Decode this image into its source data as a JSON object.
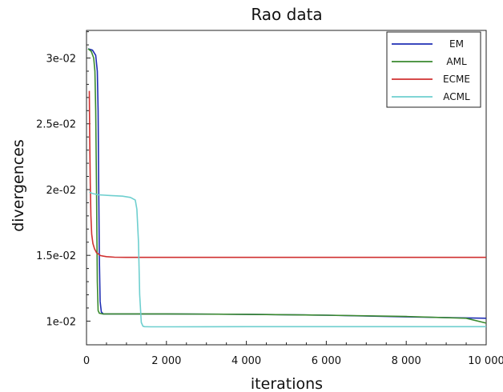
{
  "chart_data": {
    "type": "line",
    "title": "Rao data",
    "xlabel": "iterations",
    "ylabel": "divergences",
    "xlim": [
      0,
      10000
    ],
    "ylim": [
      0.0082,
      0.0321
    ],
    "grid": false,
    "legend_position": "top-right",
    "xticks": [
      0,
      2000,
      4000,
      6000,
      8000,
      10000
    ],
    "xtick_labels": [
      "0",
      "2 000",
      "4 000",
      "6 000",
      "8 000",
      "10 000"
    ],
    "yticks": [
      0.01,
      0.015,
      0.02,
      0.025,
      0.03
    ],
    "ytick_labels": [
      "1e-02",
      "1.5e-02",
      "2e-02",
      "2.5e-02",
      "3e-02"
    ],
    "series": [
      {
        "name": "EM",
        "color": "#1f2eb4",
        "x": [
          40,
          150,
          230,
          270,
          290,
          300,
          320,
          340,
          370,
          420,
          600,
          1000,
          2000,
          4000,
          6000,
          8000,
          10000
        ],
        "y": [
          0.0307,
          0.0306,
          0.0302,
          0.029,
          0.026,
          0.022,
          0.015,
          0.0115,
          0.0107,
          0.01055,
          0.01055,
          0.01055,
          0.01055,
          0.01052,
          0.01045,
          0.01032,
          0.01022
        ]
      },
      {
        "name": "AML",
        "color": "#3a8a2e",
        "x": [
          40,
          120,
          180,
          210,
          230,
          250,
          270,
          290,
          320,
          400,
          600,
          1000,
          2000,
          4000,
          6000,
          8000,
          9500,
          10000
        ],
        "y": [
          0.0307,
          0.0305,
          0.03,
          0.029,
          0.026,
          0.02,
          0.013,
          0.0108,
          0.0106,
          0.01055,
          0.01055,
          0.01055,
          0.01055,
          0.01052,
          0.01045,
          0.01035,
          0.01022,
          0.00985
        ]
      },
      {
        "name": "ECME",
        "color": "#d03030",
        "x": [
          70,
          80,
          95,
          110,
          130,
          160,
          200,
          250,
          350,
          500,
          700,
          1000,
          2000,
          4000,
          6000,
          8000,
          10000
        ],
        "y": [
          0.0275,
          0.024,
          0.0205,
          0.018,
          0.0166,
          0.0159,
          0.0155,
          0.0152,
          0.01498,
          0.0149,
          0.01486,
          0.01485,
          0.01485,
          0.01485,
          0.01485,
          0.01485,
          0.01485
        ]
      },
      {
        "name": "ACML",
        "color": "#6ecfcf",
        "x": [
          70,
          150,
          300,
          600,
          900,
          1100,
          1220,
          1260,
          1300,
          1330,
          1370,
          1410,
          1450,
          1600,
          2000,
          4000,
          6000,
          8000,
          10000
        ],
        "y": [
          0.0198,
          0.0197,
          0.0196,
          0.01955,
          0.0195,
          0.0194,
          0.0192,
          0.0185,
          0.016,
          0.012,
          0.0099,
          0.00962,
          0.00958,
          0.00957,
          0.00957,
          0.00958,
          0.00958,
          0.00958,
          0.00958
        ]
      }
    ]
  }
}
